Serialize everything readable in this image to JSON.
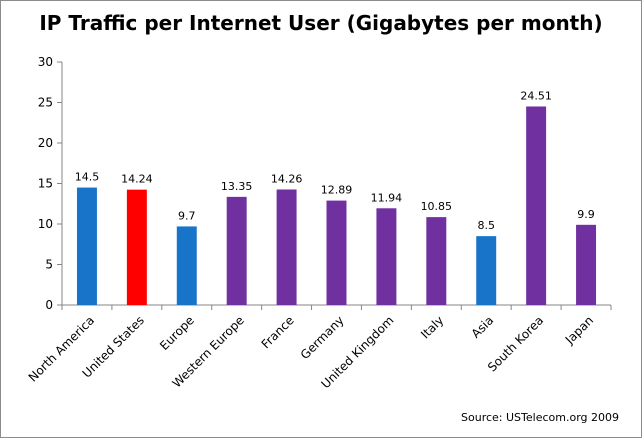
{
  "chart_data": {
    "type": "bar",
    "title": "IP Traffic per Internet User (Gigabytes per month)",
    "categories": [
      "North America",
      "United States",
      "Europe",
      "Western Europe",
      "France",
      "Germany",
      "United Kingdom",
      "Italy",
      "Asia",
      "South Korea",
      "Japan"
    ],
    "values": [
      14.5,
      14.24,
      9.7,
      13.35,
      14.26,
      12.89,
      11.94,
      10.85,
      8.5,
      24.51,
      9.9
    ],
    "data_labels": [
      "14.5",
      "14.24",
      "9.7",
      "13.35",
      "14.26",
      "12.89",
      "11.94",
      "10.85",
      "8.5",
      "24.51",
      "9.9"
    ],
    "bar_colors": [
      "#1874c9",
      "#ff0000",
      "#1874c9",
      "#7030a0",
      "#7030a0",
      "#7030a0",
      "#7030a0",
      "#7030a0",
      "#1874c9",
      "#7030a0",
      "#7030a0"
    ],
    "ylim": [
      0,
      30
    ],
    "yticks": [
      0,
      5,
      10,
      15,
      20,
      25,
      30
    ],
    "xlabel": "",
    "ylabel": "",
    "grid": false,
    "legend": "none"
  },
  "source_note": "Source:  USTelecom.org 2009"
}
